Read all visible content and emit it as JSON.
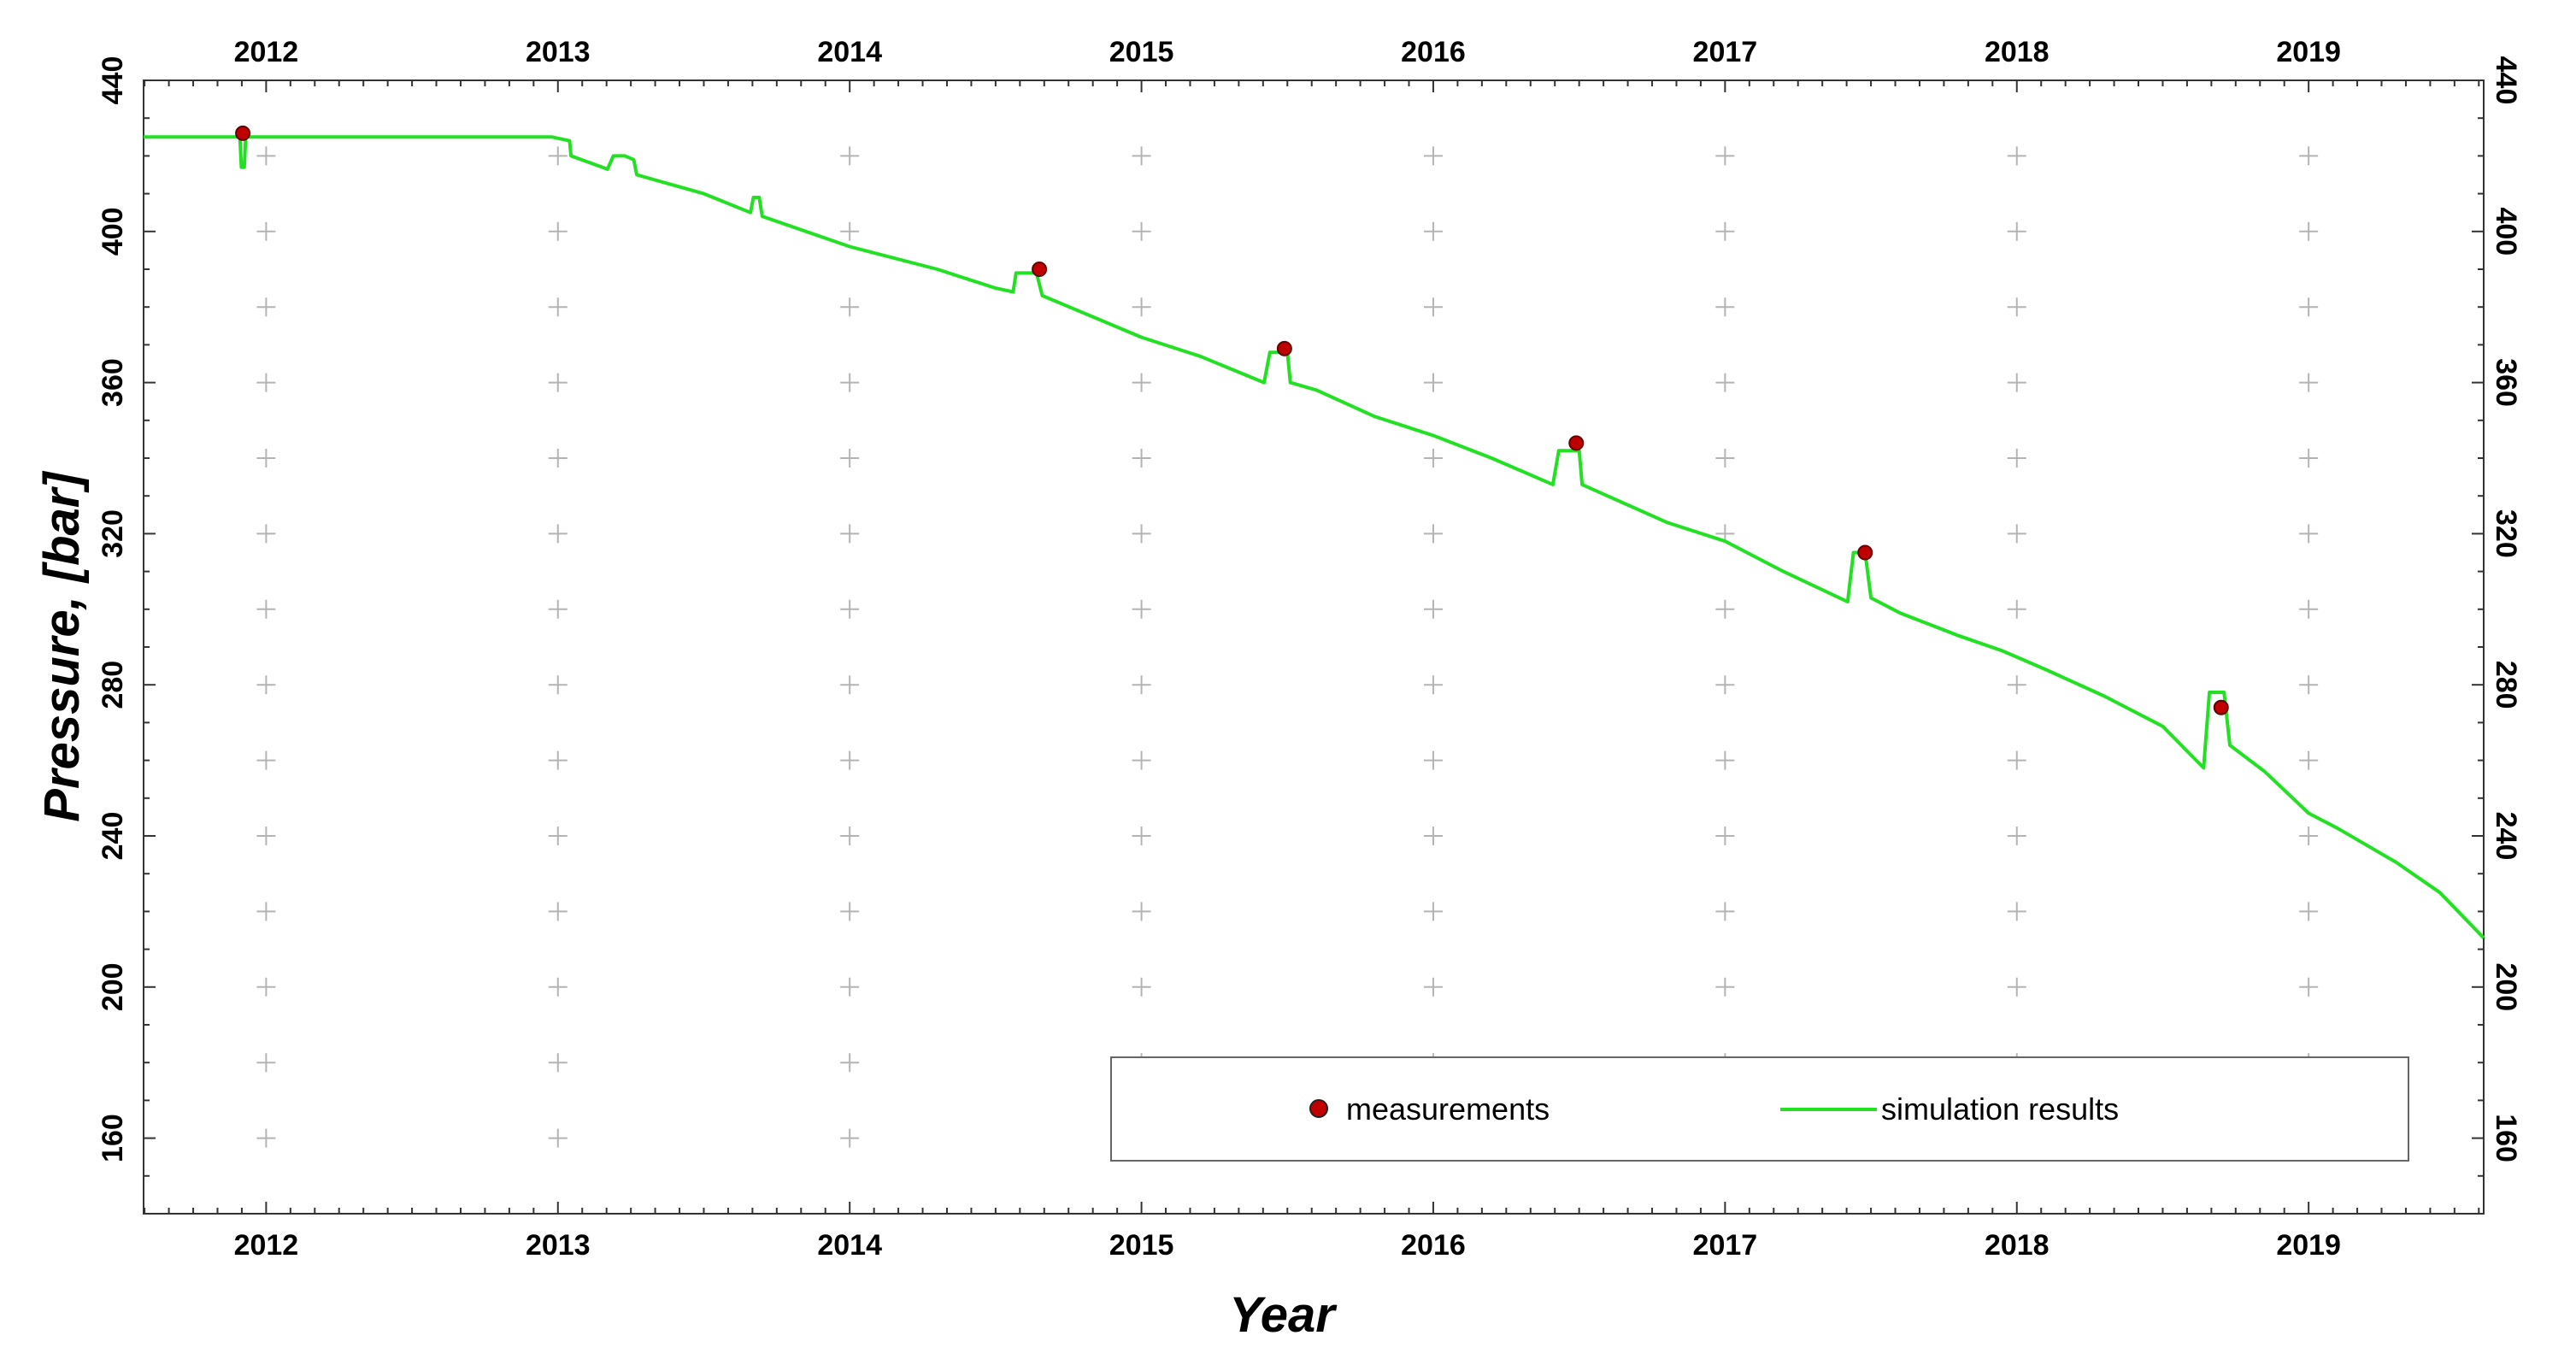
{
  "chart_data": {
    "type": "line",
    "title": "",
    "xlabel": "Year",
    "ylabel": "Pressure, [bar]",
    "xlim": [
      2011.58,
      2019.6
    ],
    "ylim": [
      140,
      440
    ],
    "x_ticks": [
      "2012",
      "2013",
      "2014",
      "2015",
      "2016",
      "2017",
      "2018",
      "2019"
    ],
    "y_ticks": [
      "160",
      "200",
      "240",
      "280",
      "320",
      "360",
      "400",
      "440"
    ],
    "grid": true,
    "legend_position": "bottom-right",
    "colors": {
      "measurements": "#c00000",
      "simulation": "#22e022"
    },
    "series": [
      {
        "name": "measurements",
        "kind": "scatter",
        "points": [
          [
            2011.92,
            426
          ],
          [
            2014.65,
            390
          ],
          [
            2015.49,
            369
          ],
          [
            2016.49,
            344
          ],
          [
            2017.48,
            315
          ],
          [
            2018.7,
            274
          ]
        ]
      },
      {
        "name": "simulation results",
        "kind": "line",
        "points": [
          [
            2011.58,
            425
          ],
          [
            2011.91,
            425
          ],
          [
            2011.915,
            417
          ],
          [
            2011.925,
            417
          ],
          [
            2011.93,
            425
          ],
          [
            2012.98,
            425
          ],
          [
            2013.04,
            424
          ],
          [
            2013.045,
            420
          ],
          [
            2013.17,
            416.5
          ],
          [
            2013.19,
            420
          ],
          [
            2013.23,
            420
          ],
          [
            2013.26,
            419
          ],
          [
            2013.27,
            415
          ],
          [
            2013.5,
            410
          ],
          [
            2013.66,
            405
          ],
          [
            2013.67,
            409
          ],
          [
            2013.69,
            409
          ],
          [
            2013.7,
            404
          ],
          [
            2014.0,
            396
          ],
          [
            2014.3,
            390
          ],
          [
            2014.5,
            385
          ],
          [
            2014.56,
            384
          ],
          [
            2014.57,
            389
          ],
          [
            2014.64,
            389
          ],
          [
            2014.66,
            383
          ],
          [
            2015.0,
            372
          ],
          [
            2015.2,
            367
          ],
          [
            2015.42,
            360
          ],
          [
            2015.44,
            368
          ],
          [
            2015.5,
            368
          ],
          [
            2015.51,
            360
          ],
          [
            2015.6,
            358
          ],
          [
            2015.8,
            351
          ],
          [
            2016.0,
            346
          ],
          [
            2016.2,
            340
          ],
          [
            2016.41,
            333
          ],
          [
            2016.43,
            342
          ],
          [
            2016.5,
            342
          ],
          [
            2016.51,
            333
          ],
          [
            2016.8,
            323
          ],
          [
            2017.0,
            318
          ],
          [
            2017.2,
            310
          ],
          [
            2017.42,
            302
          ],
          [
            2017.44,
            315
          ],
          [
            2017.48,
            315
          ],
          [
            2017.5,
            303
          ],
          [
            2017.6,
            299
          ],
          [
            2017.8,
            293
          ],
          [
            2017.95,
            289
          ],
          [
            2018.1,
            284
          ],
          [
            2018.3,
            277
          ],
          [
            2018.5,
            269
          ],
          [
            2018.64,
            258
          ],
          [
            2018.66,
            278
          ],
          [
            2018.71,
            278
          ],
          [
            2018.73,
            264
          ],
          [
            2018.85,
            257
          ],
          [
            2019.0,
            246
          ],
          [
            2019.1,
            242
          ],
          [
            2019.3,
            233
          ],
          [
            2019.45,
            225
          ],
          [
            2019.6,
            213
          ]
        ]
      }
    ]
  },
  "legend": {
    "measurements_label": "measurements",
    "simulation_label": "simulation results"
  }
}
